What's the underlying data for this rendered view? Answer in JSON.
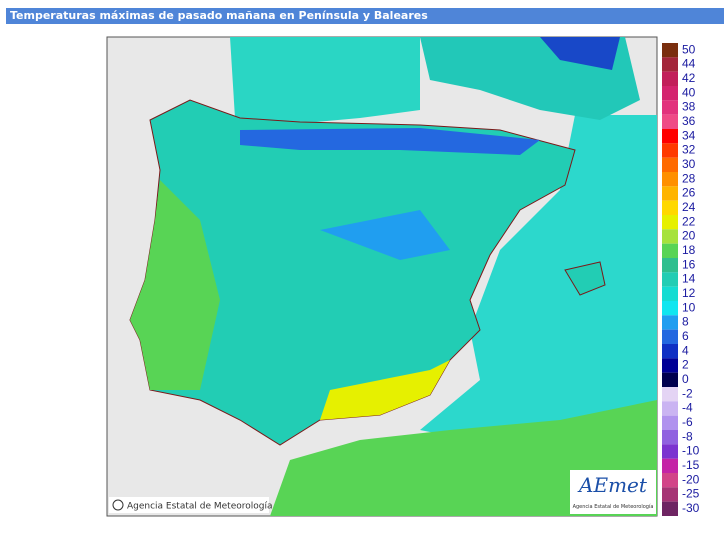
{
  "header": {
    "title": "Temperaturas máximas de pasado mañana en Península y Baleares"
  },
  "legend": {
    "entries": [
      {
        "label": 50,
        "color": "#7a2e0e"
      },
      {
        "label": 44,
        "color": "#a3263a"
      },
      {
        "label": 42,
        "color": "#c21f5a"
      },
      {
        "label": 40,
        "color": "#d4246e"
      },
      {
        "label": 38,
        "color": "#e2327c"
      },
      {
        "label": 36,
        "color": "#ef4a86"
      },
      {
        "label": 34,
        "color": "#ff0000"
      },
      {
        "label": 32,
        "color": "#ff3a00"
      },
      {
        "label": 30,
        "color": "#ff6a00"
      },
      {
        "label": 28,
        "color": "#ff9000"
      },
      {
        "label": 26,
        "color": "#ffb400"
      },
      {
        "label": 24,
        "color": "#ffd800"
      },
      {
        "label": 22,
        "color": "#e6f000"
      },
      {
        "label": 20,
        "color": "#a6e23c"
      },
      {
        "label": 18,
        "color": "#58d455"
      },
      {
        "label": 16,
        "color": "#2fbf8e"
      },
      {
        "label": 14,
        "color": "#22cdb4"
      },
      {
        "label": 12,
        "color": "#14dcd2"
      },
      {
        "label": 10,
        "color": "#10e6f0"
      },
      {
        "label": 8,
        "color": "#209ef0"
      },
      {
        "label": 6,
        "color": "#2468e0"
      },
      {
        "label": 4,
        "color": "#1030c4"
      },
      {
        "label": 2,
        "color": "#000096"
      },
      {
        "label": 0,
        "color": "#00004e"
      },
      {
        "label": -2,
        "color": "#e4d4f4"
      },
      {
        "label": -4,
        "color": "#cab4f2"
      },
      {
        "label": -6,
        "color": "#b092ee"
      },
      {
        "label": -8,
        "color": "#9062e0"
      },
      {
        "label": -10,
        "color": "#7c34d0"
      },
      {
        "label": -15,
        "color": "#c424a6"
      },
      {
        "label": -20,
        "color": "#d24488"
      },
      {
        "label": -25,
        "color": "#a63474"
      },
      {
        "label": -30,
        "color": "#6e2462"
      }
    ]
  },
  "credits": {
    "copyright": "Agencia Estatal de Meteorología",
    "logo": "AEmet",
    "logo_subtitle": "Agencia Estatal de Meteorología"
  }
}
